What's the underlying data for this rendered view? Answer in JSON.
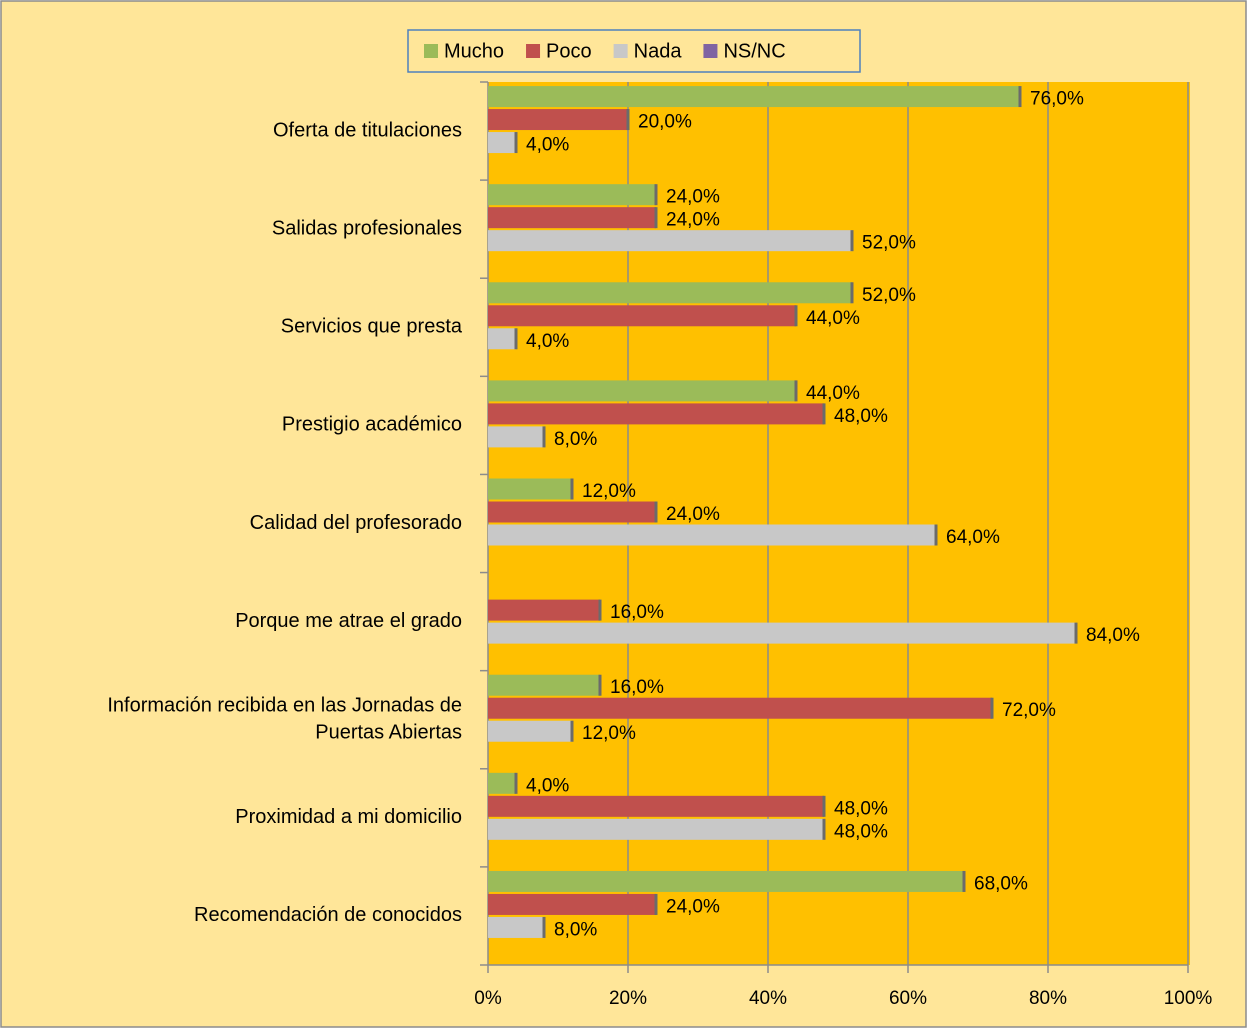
{
  "chart_data": {
    "type": "hbar",
    "categories": [
      "Oferta de titulaciones",
      "Salidas profesionales",
      "Servicios que presta",
      "Prestigio académico",
      "Calidad del profesorado",
      "Porque me atrae el grado",
      "Información recibida en las Jornadas de Puertas Abiertas",
      "Proximidad a mi domicilio",
      "Recomendación de conocidos"
    ],
    "series": [
      {
        "name": "Mucho",
        "color": "#9bbb59",
        "values": [
          76,
          24,
          52,
          44,
          12,
          null,
          16,
          4,
          68
        ],
        "value_labels": [
          "76,0%",
          "24,0%",
          "52,0%",
          "44,0%",
          "12,0%",
          null,
          "16,0%",
          "4,0%",
          "68,0%"
        ]
      },
      {
        "name": "Poco",
        "color": "#c0504d",
        "values": [
          20,
          24,
          44,
          48,
          24,
          16,
          72,
          48,
          24
        ],
        "value_labels": [
          "20,0%",
          "24,0%",
          "44,0%",
          "48,0%",
          "24,0%",
          "16,0%",
          "72,0%",
          "48,0%",
          "24,0%"
        ]
      },
      {
        "name": "Nada",
        "color": "#c8c8c8",
        "values": [
          4,
          52,
          4,
          8,
          64,
          84,
          12,
          48,
          8
        ],
        "value_labels": [
          "4,0%",
          "52,0%",
          "4,0%",
          "8,0%",
          "64,0%",
          "84,0%",
          "12,0%",
          "48,0%",
          "8,0%"
        ]
      },
      {
        "name": "NS/NC",
        "color": "#8064a2",
        "values": [
          null,
          null,
          null,
          null,
          null,
          null,
          null,
          null,
          null
        ]
      }
    ],
    "xlim": [
      0,
      100
    ],
    "xticks": [
      {
        "value": 0,
        "label": "0%"
      },
      {
        "value": 20,
        "label": "20%"
      },
      {
        "value": 40,
        "label": "40%"
      },
      {
        "value": 60,
        "label": "60%"
      },
      {
        "value": 80,
        "label": "80%"
      },
      {
        "value": 100,
        "label": "100%"
      }
    ],
    "grid": true,
    "legend": "top",
    "plot_color": "#ffc000",
    "background": "#ffe699"
  }
}
